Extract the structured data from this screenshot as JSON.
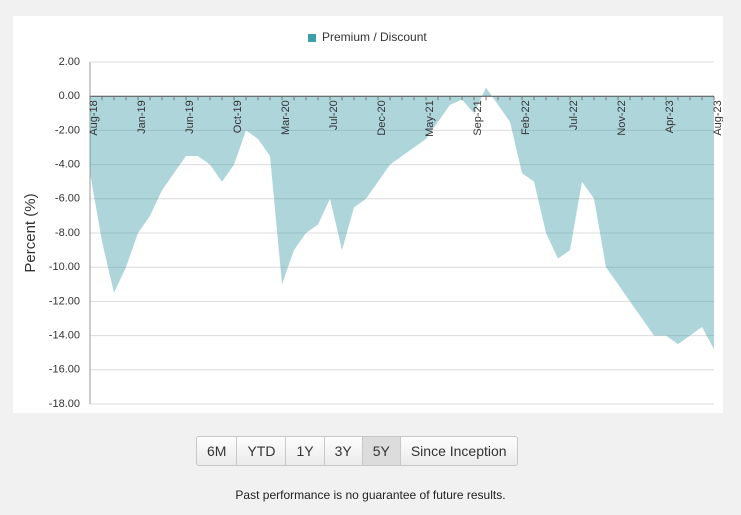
{
  "chart_data": {
    "type": "area",
    "legend": "top",
    "ylabel": "Percent (%)",
    "categories": [
      "Aug-18",
      null,
      null,
      null,
      "Jan-19",
      null,
      null,
      null,
      "Jun-19",
      null,
      null,
      null,
      "Oct-19",
      null,
      null,
      null,
      "Mar-20",
      null,
      null,
      null,
      "Jul-20",
      null,
      null,
      null,
      "Dec-20",
      null,
      null,
      null,
      "May-21",
      null,
      null,
      null,
      "Sep-21",
      null,
      null,
      null,
      "Feb-22",
      null,
      null,
      null,
      "Jul-22",
      null,
      null,
      null,
      "Nov-22",
      null,
      null,
      null,
      "Apr-23",
      null,
      null,
      null,
      "Aug-23"
    ],
    "series": [
      {
        "name": "Premium / Discount",
        "color": "#3d9ea8",
        "values": [
          -4.5,
          -8.5,
          -11.5,
          -10,
          -8,
          -7,
          -5.5,
          -4.5,
          -3.5,
          -3.5,
          -4,
          -5,
          -4,
          -2,
          -2.5,
          -3.5,
          -11,
          -9,
          -8,
          -7.5,
          -6,
          -9,
          -6.5,
          -6,
          -5,
          -4,
          -3.5,
          -3,
          -2.5,
          -1.5,
          -0.5,
          -0.2,
          -1,
          0.5,
          -0.5,
          -1.5,
          -4.5,
          -5,
          -8,
          -9.5,
          -9,
          -5,
          -6,
          -10,
          -11,
          -12,
          -13,
          -14,
          -14,
          -14.5,
          -14,
          -13.5,
          -14.8
        ]
      }
    ],
    "ylim": [
      -18,
      2
    ],
    "yticks": [
      {
        "value": -18,
        "label": "-18.00"
      },
      {
        "value": -16,
        "label": "-16.00"
      },
      {
        "value": -14,
        "label": "-14.00"
      },
      {
        "value": -12,
        "label": "-12.00"
      },
      {
        "value": -10,
        "label": "-10.00"
      },
      {
        "value": -8,
        "label": "-8.00"
      },
      {
        "value": -6,
        "label": "-6.00"
      },
      {
        "value": -4,
        "label": "-4.00"
      },
      {
        "value": -2,
        "label": "-2.00"
      },
      {
        "value": 0,
        "label": "0.00"
      },
      {
        "value": 2,
        "label": "2.00"
      }
    ],
    "grid": true
  },
  "buttons": [
    "6M",
    "YTD",
    "1Y",
    "3Y",
    "5Y",
    "Since Inception"
  ],
  "footer": "Past performance is no guarantee of future results."
}
